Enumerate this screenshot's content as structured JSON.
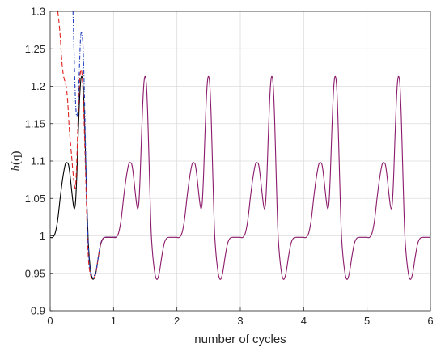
{
  "chart_data": {
    "type": "line",
    "title": "",
    "xlabel": "number of cycles",
    "ylabel_parts": [
      "h",
      "(q)"
    ],
    "xlim": [
      0,
      6
    ],
    "ylim": [
      0.9,
      1.3
    ],
    "xticks": [
      0,
      1,
      2,
      3,
      4,
      5,
      6
    ],
    "xtick_labels": [
      "0",
      "1",
      "2",
      "3",
      "4",
      "5",
      "6"
    ],
    "yticks": [
      0.9,
      0.95,
      1.0,
      1.05,
      1.1,
      1.15,
      1.2,
      1.25,
      1.3
    ],
    "ytick_labels": [
      "0.9",
      "0.95",
      "1",
      "1.05",
      "1.1",
      "1.15",
      "1.2",
      "1.25",
      "1.3"
    ],
    "grid": true,
    "legend": null,
    "periodic_cycle": {
      "period": 1,
      "x": [
        0.0,
        0.04,
        0.08,
        0.12,
        0.16,
        0.2,
        0.24,
        0.28,
        0.3,
        0.32,
        0.34,
        0.36,
        0.38,
        0.4,
        0.42,
        0.44,
        0.46,
        0.48,
        0.5,
        0.52,
        0.54,
        0.56,
        0.58,
        0.6,
        0.64,
        0.68,
        0.72,
        0.76,
        0.8,
        0.84,
        0.88,
        0.92,
        0.96,
        1.0
      ],
      "y": [
        0.998,
        0.998,
        1.004,
        1.022,
        1.052,
        1.078,
        1.096,
        1.097,
        1.09,
        1.076,
        1.06,
        1.045,
        1.036,
        1.045,
        1.08,
        1.13,
        1.175,
        1.205,
        1.213,
        1.2,
        1.16,
        1.1,
        1.04,
        0.995,
        0.957,
        0.942,
        0.95,
        0.972,
        0.99,
        0.997,
        0.998,
        0.998,
        0.998,
        0.998
      ]
    },
    "series": [
      {
        "color": "#000000",
        "dash": "solid",
        "x": [
          0.0,
          0.04,
          0.08,
          0.12,
          0.16,
          0.2,
          0.24,
          0.28,
          0.3,
          0.32,
          0.34,
          0.36,
          0.38,
          0.4,
          0.42,
          0.44,
          0.46,
          0.48,
          0.5,
          0.52,
          0.54,
          0.56,
          0.58,
          0.6,
          0.62,
          0.65,
          0.68,
          0.72,
          0.76,
          0.8,
          0.84,
          0.88,
          0.92,
          0.96,
          1.0,
          1.04
        ],
        "y": [
          0.998,
          0.998,
          1.004,
          1.022,
          1.052,
          1.078,
          1.096,
          1.097,
          1.09,
          1.076,
          1.06,
          1.045,
          1.036,
          1.045,
          1.08,
          1.13,
          1.175,
          1.205,
          1.213,
          1.2,
          1.16,
          1.1,
          1.04,
          0.995,
          0.968,
          0.948,
          0.942,
          0.95,
          0.972,
          0.99,
          0.997,
          0.998,
          0.998,
          0.998,
          0.998,
          0.998
        ]
      },
      {
        "color": "#e02020",
        "dash": "dashed",
        "x": [
          0.12,
          0.14,
          0.16,
          0.18,
          0.2,
          0.22,
          0.24,
          0.26,
          0.28,
          0.3,
          0.32,
          0.34,
          0.36,
          0.38,
          0.4,
          0.42,
          0.44,
          0.46,
          0.48,
          0.5,
          0.52,
          0.54,
          0.56,
          0.58,
          0.6,
          0.62,
          0.65,
          0.68,
          0.72,
          0.76,
          0.8,
          0.84,
          0.88,
          0.92,
          0.96,
          1.0,
          1.04
        ],
        "y": [
          1.3,
          1.285,
          1.265,
          1.238,
          1.22,
          1.21,
          1.205,
          1.195,
          1.175,
          1.145,
          1.125,
          1.105,
          1.085,
          1.07,
          1.065,
          1.1,
          1.155,
          1.2,
          1.22,
          1.218,
          1.19,
          1.14,
          1.08,
          1.02,
          0.975,
          0.955,
          0.944,
          0.943,
          0.95,
          0.972,
          0.99,
          0.997,
          0.998,
          0.998,
          0.998,
          0.998,
          0.998
        ]
      },
      {
        "color": "#1f3fbf",
        "dash": "dashdot",
        "x": [
          0.36,
          0.37,
          0.38,
          0.39,
          0.4,
          0.41,
          0.42,
          0.44,
          0.46,
          0.48,
          0.5,
          0.52,
          0.54,
          0.56,
          0.58,
          0.6,
          0.62,
          0.64,
          0.66,
          0.68,
          0.72,
          0.76,
          0.8,
          0.84,
          0.88,
          0.92,
          0.96,
          1.0,
          1.04
        ],
        "y": [
          1.3,
          1.27,
          1.235,
          1.205,
          1.18,
          1.165,
          1.16,
          1.17,
          1.22,
          1.265,
          1.27,
          1.25,
          1.19,
          1.11,
          1.04,
          0.99,
          0.963,
          0.95,
          0.946,
          0.945,
          0.952,
          0.972,
          0.99,
          0.997,
          0.998,
          0.998,
          0.998,
          0.998,
          0.998
        ]
      },
      {
        "color": "#8b1a6b",
        "dash": "solid",
        "x_from": 0.8,
        "x_to": 6.0,
        "shape": "periodic_cycle"
      }
    ]
  }
}
